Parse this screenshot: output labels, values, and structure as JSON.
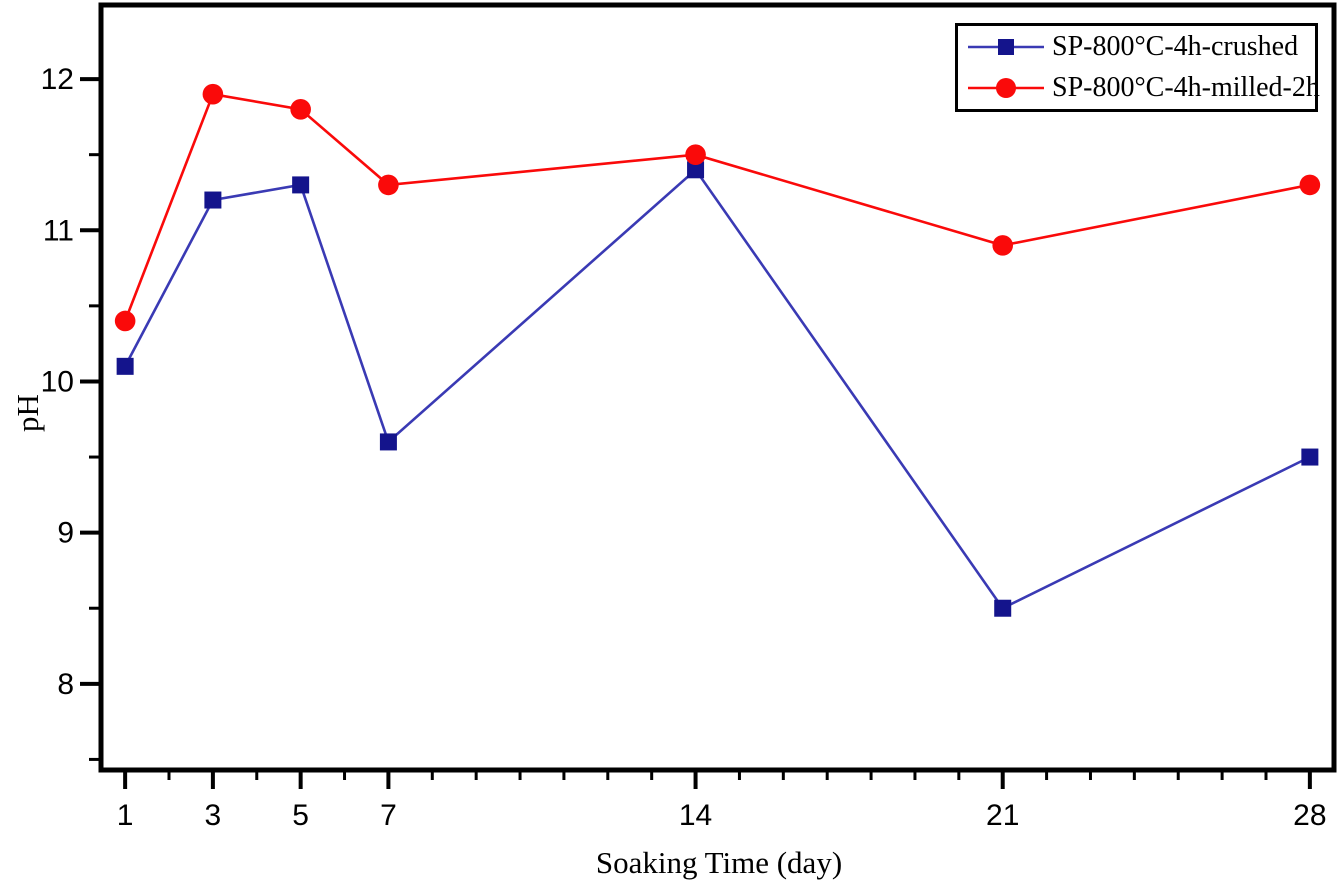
{
  "chart_data": {
    "type": "line",
    "title": "",
    "xlabel": "Soaking Time (day)",
    "ylabel": "pH",
    "x": [
      1,
      3,
      5,
      7,
      14,
      21,
      28
    ],
    "x_major_ticks": [
      1,
      3,
      5,
      7,
      14,
      21,
      28
    ],
    "x_tick_labels": [
      "1",
      "3",
      "5",
      "7",
      "14",
      "21",
      "28"
    ],
    "x_minor_ticks": [
      2,
      4,
      6,
      8,
      9,
      10,
      11,
      12,
      13,
      15,
      16,
      17,
      18,
      19,
      20,
      22,
      23,
      24,
      25,
      26,
      27
    ],
    "xlim": [
      0.45,
      28.55
    ],
    "y_major_ticks": [
      8,
      9,
      10,
      11,
      12
    ],
    "y_tick_labels": [
      "8",
      "9",
      "10",
      "11",
      "12"
    ],
    "y_minor_ticks": [
      7.5,
      8.5,
      9.5,
      10.5,
      11.5
    ],
    "ylim": [
      7.43,
      12.49
    ],
    "grid": false,
    "legend_position": "top-right",
    "series": [
      {
        "name": "SP-800°C-4h-crushed",
        "marker": "square",
        "line_color": "#3a3ab4",
        "marker_color": "#14148c",
        "values": [
          10.1,
          11.2,
          11.3,
          9.6,
          11.4,
          8.5,
          9.5
        ]
      },
      {
        "name": "SP-800°C-4h-milled-2h",
        "marker": "circle",
        "line_color": "#fa0a0a",
        "marker_color": "#fa0a0a",
        "values": [
          10.4,
          11.9,
          11.8,
          11.3,
          11.5,
          10.9,
          11.3
        ]
      }
    ],
    "axis_color": "#000000",
    "background_color": "#ffffff"
  }
}
